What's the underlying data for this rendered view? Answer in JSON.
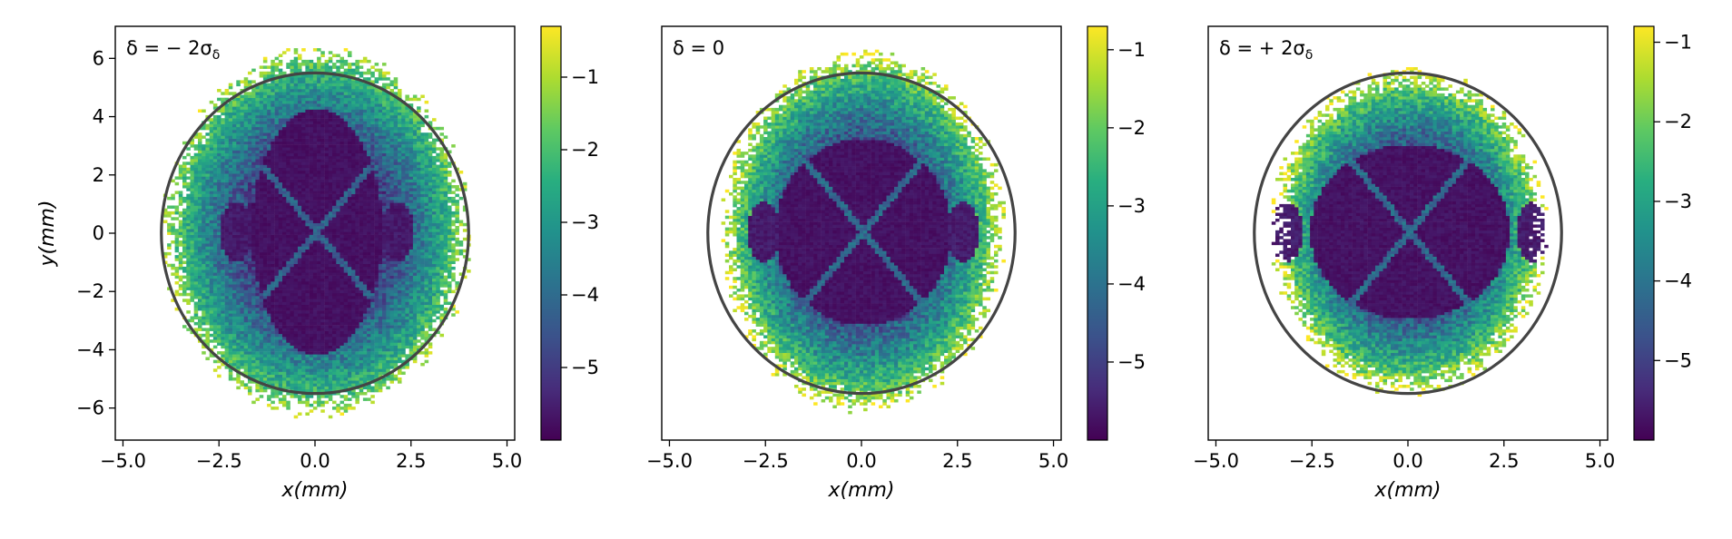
{
  "figure": {
    "panels": [
      {
        "id": "neg",
        "label": "δ = − 2σ",
        "label_sub": "δ",
        "show_ylabel": true
      },
      {
        "id": "zero",
        "label": "δ = 0",
        "label_sub": "",
        "show_ylabel": false
      },
      {
        "id": "pos",
        "label": "δ = + 2σ",
        "label_sub": "δ",
        "show_ylabel": false
      }
    ],
    "xlabel": "x(mm)",
    "ylabel": "y(mm)",
    "x_ticks": [
      "−5.0",
      "−2.5",
      "0.0",
      "2.5",
      "5.0"
    ],
    "y_ticks": [
      "6",
      "4",
      "2",
      "0",
      "−2",
      "−4",
      "−6"
    ],
    "colorbar_ticks": [
      [
        "−1",
        "−2",
        "−3",
        "−4",
        "−5"
      ],
      [
        "−1",
        "−2",
        "−3",
        "−4",
        "−5"
      ],
      [
        "−1",
        "−2",
        "−3",
        "−4",
        "−5"
      ]
    ]
  },
  "chart_data": [
    {
      "type": "heatmap",
      "title": "δ = −2σδ",
      "xlabel": "x(mm)",
      "ylabel": "y(mm)",
      "xlim": [
        -5.2,
        5.2
      ],
      "ylim": [
        -7.1,
        7.1
      ],
      "x_ticks": [
        -5.0,
        -2.5,
        0.0,
        2.5,
        5.0
      ],
      "y_ticks": [
        6,
        4,
        2,
        0,
        -2,
        -4,
        -6
      ],
      "colorbar": {
        "cmap": "viridis",
        "range": [
          -6.0,
          -0.3
        ],
        "ticks": [
          -1,
          -2,
          -3,
          -4,
          -5
        ]
      },
      "aperture_circle": {
        "center": [
          0,
          0
        ],
        "rx": 4.0,
        "ry": 5.5,
        "color": "#444444"
      },
      "distribution": {
        "rx": 4.05,
        "ry": 6.45,
        "core_rx": 1.7,
        "core_ry": 4.2,
        "side_islands_x": 2.1,
        "seed": 11
      }
    },
    {
      "type": "heatmap",
      "title": "δ = 0",
      "xlabel": "x(mm)",
      "ylabel": "",
      "xlim": [
        -5.2,
        5.2
      ],
      "ylim": [
        -7.1,
        7.1
      ],
      "x_ticks": [
        -5.0,
        -2.5,
        0.0,
        2.5,
        5.0
      ],
      "y_ticks": [],
      "colorbar": {
        "cmap": "viridis",
        "range": [
          -6.0,
          -0.7
        ],
        "ticks": [
          -1,
          -2,
          -3,
          -4,
          -5
        ]
      },
      "aperture_circle": {
        "center": [
          0,
          0
        ],
        "rx": 4.0,
        "ry": 5.5,
        "color": "#444444"
      },
      "distribution": {
        "rx": 3.75,
        "ry": 6.3,
        "core_rx": 2.3,
        "core_ry": 3.2,
        "side_islands_x": 2.6,
        "seed": 23
      }
    },
    {
      "type": "heatmap",
      "title": "δ = +2σδ",
      "xlabel": "x(mm)",
      "ylabel": "",
      "xlim": [
        -5.2,
        5.2
      ],
      "ylim": [
        -7.1,
        7.1
      ],
      "x_ticks": [
        -5.0,
        -2.5,
        0.0,
        2.5,
        5.0
      ],
      "y_ticks": [],
      "colorbar": {
        "cmap": "viridis",
        "range": [
          -6.0,
          -0.8
        ],
        "ticks": [
          -1,
          -2,
          -3,
          -4,
          -5
        ]
      },
      "aperture_circle": {
        "center": [
          0,
          0
        ],
        "rx": 4.0,
        "ry": 5.5,
        "color": "#444444"
      },
      "distribution": {
        "rx": 3.65,
        "ry": 5.7,
        "core_rx": 2.6,
        "core_ry": 3.0,
        "side_islands_x": 3.2,
        "seed": 37
      }
    }
  ]
}
